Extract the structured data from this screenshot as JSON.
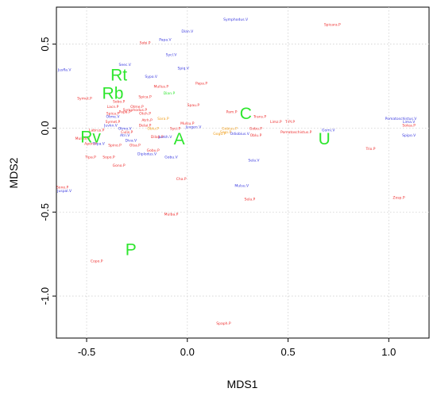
{
  "chart_data": {
    "type": "scatter",
    "title": "",
    "xlabel": "MDS1",
    "ylabel": "MDS2",
    "xlim": [
      -0.65,
      1.2
    ],
    "ylim": [
      -1.25,
      0.72
    ],
    "xticks": [
      "-0.5",
      "0.0",
      "0.5",
      "1.0"
    ],
    "xtick_values": [
      -0.5,
      0.0,
      0.5,
      1.0
    ],
    "yticks": [
      "-1.0",
      "-0.5",
      "0.0",
      "0.5"
    ],
    "ytick_values": [
      -1.0,
      -0.5,
      0.0,
      0.5
    ],
    "grid": true,
    "colors": {
      "red": "#ee3030",
      "blue": "#3a3ae0",
      "orange": "#f0a020",
      "green": "#2ee62e"
    },
    "group_labels": [
      {
        "text": "Rt",
        "x": -0.34,
        "y": 0.31
      },
      {
        "text": "Rb",
        "x": -0.37,
        "y": 0.2
      },
      {
        "text": "Rv",
        "x": -0.48,
        "y": -0.06
      },
      {
        "text": "A",
        "x": -0.04,
        "y": -0.07
      },
      {
        "text": "C",
        "x": 0.29,
        "y": 0.08
      },
      {
        "text": "U",
        "x": 0.68,
        "y": -0.07
      },
      {
        "text": "P",
        "x": -0.28,
        "y": -0.73
      }
    ],
    "points": [
      {
        "label": "Symphodus.V",
        "x": 0.24,
        "y": 0.64,
        "color": "blue"
      },
      {
        "label": "Spicara.P",
        "x": 0.72,
        "y": 0.61,
        "color": "red"
      },
      {
        "label": "Dian.V",
        "x": 0.0,
        "y": 0.57,
        "color": "blue"
      },
      {
        "label": "Papa.V",
        "x": -0.11,
        "y": 0.52,
        "color": "blue"
      },
      {
        "label": "Sobi.P",
        "x": -0.21,
        "y": 0.5,
        "color": "red"
      },
      {
        "label": "Sycl.V",
        "x": -0.08,
        "y": 0.43,
        "color": "blue"
      },
      {
        "label": "Jusfla.V",
        "x": -0.61,
        "y": 0.34,
        "color": "blue"
      },
      {
        "label": "Seec.V",
        "x": -0.31,
        "y": 0.37,
        "color": "blue"
      },
      {
        "label": "Spiq.V",
        "x": -0.02,
        "y": 0.35,
        "color": "blue"
      },
      {
        "label": "Mullus.P",
        "x": -0.13,
        "y": 0.24,
        "color": "red"
      },
      {
        "label": "Sypo.V",
        "x": -0.18,
        "y": 0.3,
        "color": "blue"
      },
      {
        "label": "Papa.P",
        "x": 0.07,
        "y": 0.26,
        "color": "red"
      },
      {
        "label": "Dian.P",
        "x": -0.09,
        "y": 0.2,
        "color": "green"
      },
      {
        "label": "Symet.P",
        "x": -0.51,
        "y": 0.17,
        "color": "red"
      },
      {
        "label": "Spica.P",
        "x": -0.21,
        "y": 0.18,
        "color": "red"
      },
      {
        "label": "Sobo.P",
        "x": -0.34,
        "y": 0.15,
        "color": "red"
      },
      {
        "label": "Lacn.P",
        "x": -0.37,
        "y": 0.12,
        "color": "red"
      },
      {
        "label": "Spau.P",
        "x": 0.03,
        "y": 0.13,
        "color": "red"
      },
      {
        "label": "Otme.P",
        "x": -0.25,
        "y": 0.12,
        "color": "red"
      },
      {
        "label": "Symphodus.P",
        "x": -0.26,
        "y": 0.1,
        "color": "red"
      },
      {
        "label": "Papa.P",
        "x": -0.31,
        "y": 0.09,
        "color": "red"
      },
      {
        "label": "Spica.P",
        "x": -0.37,
        "y": 0.08,
        "color": "red"
      },
      {
        "label": "Otch.P",
        "x": -0.21,
        "y": 0.08,
        "color": "red"
      },
      {
        "label": "Pam.P",
        "x": 0.22,
        "y": 0.09,
        "color": "red"
      },
      {
        "label": "Trans.P",
        "x": 0.36,
        "y": 0.06,
        "color": "red"
      },
      {
        "label": "Limz.P",
        "x": 0.44,
        "y": 0.03,
        "color": "red"
      },
      {
        "label": "T-Pl.P",
        "x": 0.51,
        "y": 0.03,
        "color": "red"
      },
      {
        "label": "Otme.V",
        "x": -0.37,
        "y": 0.06,
        "color": "blue"
      },
      {
        "label": "Sara.P",
        "x": -0.12,
        "y": 0.05,
        "color": "orange"
      },
      {
        "label": "Atrh.P",
        "x": -0.2,
        "y": 0.04,
        "color": "red"
      },
      {
        "label": "Symet.P",
        "x": -0.37,
        "y": 0.03,
        "color": "red"
      },
      {
        "label": "Juvkn.V",
        "x": -0.38,
        "y": 0.01,
        "color": "blue"
      },
      {
        "label": "Delai.P",
        "x": -0.21,
        "y": 0.01,
        "color": "red"
      },
      {
        "label": "Mulsu.P",
        "x": 0.0,
        "y": 0.02,
        "color": "red"
      },
      {
        "label": "Juvgen.V",
        "x": 0.03,
        "y": 0.0,
        "color": "blue"
      },
      {
        "label": "Gobu.P",
        "x": 0.34,
        "y": -0.01,
        "color": "red"
      },
      {
        "label": "Pomatoschistus.V",
        "x": 1.06,
        "y": 0.05,
        "color": "blue"
      },
      {
        "label": "Lima.V",
        "x": 1.1,
        "y": 0.03,
        "color": "blue"
      },
      {
        "label": "Solea.P",
        "x": 1.1,
        "y": 0.01,
        "color": "red"
      },
      {
        "label": "Otmo.V",
        "x": -0.31,
        "y": -0.01,
        "color": "blue"
      },
      {
        "label": "Culis.P",
        "x": -0.3,
        "y": -0.03,
        "color": "red"
      },
      {
        "label": "Oblu.P",
        "x": -0.17,
        "y": -0.01,
        "color": "orange"
      },
      {
        "label": "Syci.P",
        "x": -0.06,
        "y": -0.01,
        "color": "red"
      },
      {
        "label": "Labrus.P",
        "x": -0.45,
        "y": -0.02,
        "color": "red"
      },
      {
        "label": "Pomatoschistus.P",
        "x": 0.54,
        "y": -0.03,
        "color": "red"
      },
      {
        "label": "Gomi.V",
        "x": 0.7,
        "y": -0.02,
        "color": "blue"
      },
      {
        "label": "Gobius.P",
        "x": 0.21,
        "y": -0.01,
        "color": "orange"
      },
      {
        "label": "Gogu.P",
        "x": 0.16,
        "y": -0.04,
        "color": "orange"
      },
      {
        "label": "Sero.P",
        "x": 0.19,
        "y": -0.03,
        "color": "orange"
      },
      {
        "label": "Odiobius.V",
        "x": 0.26,
        "y": -0.04,
        "color": "blue"
      },
      {
        "label": "Oblu.P",
        "x": 0.34,
        "y": -0.05,
        "color": "red"
      },
      {
        "label": "Atri.V",
        "x": -0.31,
        "y": -0.05,
        "color": "blue"
      },
      {
        "label": "Dilab.P",
        "x": -0.15,
        "y": -0.06,
        "color": "red"
      },
      {
        "label": "Juvkh.V",
        "x": -0.11,
        "y": -0.06,
        "color": "blue"
      },
      {
        "label": "Diva.V",
        "x": -0.28,
        "y": -0.08,
        "color": "blue"
      },
      {
        "label": "Spipo.V",
        "x": 1.1,
        "y": -0.05,
        "color": "blue"
      },
      {
        "label": "Mulsdi.P",
        "x": -0.52,
        "y": -0.07,
        "color": "red"
      },
      {
        "label": "Tripa.V",
        "x": -0.44,
        "y": -0.1,
        "color": "blue"
      },
      {
        "label": "Spino.P",
        "x": -0.36,
        "y": -0.11,
        "color": "red"
      },
      {
        "label": "Apon.P",
        "x": -0.48,
        "y": -0.1,
        "color": "red"
      },
      {
        "label": "Olsa.P",
        "x": -0.26,
        "y": -0.11,
        "color": "red"
      },
      {
        "label": "Gobu.P",
        "x": -0.17,
        "y": -0.14,
        "color": "red"
      },
      {
        "label": "Diplodus.V",
        "x": -0.2,
        "y": -0.16,
        "color": "blue"
      },
      {
        "label": "Trio.P",
        "x": 0.91,
        "y": -0.13,
        "color": "red"
      },
      {
        "label": "Tipa.P",
        "x": -0.48,
        "y": -0.18,
        "color": "red"
      },
      {
        "label": "Sopo.P",
        "x": -0.39,
        "y": -0.18,
        "color": "red"
      },
      {
        "label": "Gobu.V",
        "x": -0.08,
        "y": -0.18,
        "color": "blue"
      },
      {
        "label": "Sela.V",
        "x": 0.33,
        "y": -0.2,
        "color": "blue"
      },
      {
        "label": "Gono.P",
        "x": -0.34,
        "y": -0.23,
        "color": "red"
      },
      {
        "label": "Cha.P",
        "x": -0.03,
        "y": -0.31,
        "color": "red"
      },
      {
        "label": "Sono.P",
        "x": -0.62,
        "y": -0.36,
        "color": "red"
      },
      {
        "label": "Juspal.V",
        "x": -0.61,
        "y": -0.38,
        "color": "blue"
      },
      {
        "label": "Mulsu.V",
        "x": 0.27,
        "y": -0.35,
        "color": "blue"
      },
      {
        "label": "Sela.P",
        "x": 0.31,
        "y": -0.43,
        "color": "red"
      },
      {
        "label": "Zosp.P",
        "x": 1.05,
        "y": -0.42,
        "color": "red"
      },
      {
        "label": "Mulba.P",
        "x": -0.08,
        "y": -0.52,
        "color": "red"
      },
      {
        "label": "Copo.P",
        "x": -0.45,
        "y": -0.8,
        "color": "red"
      },
      {
        "label": "Spaph.P",
        "x": 0.18,
        "y": -1.17,
        "color": "red"
      }
    ]
  }
}
